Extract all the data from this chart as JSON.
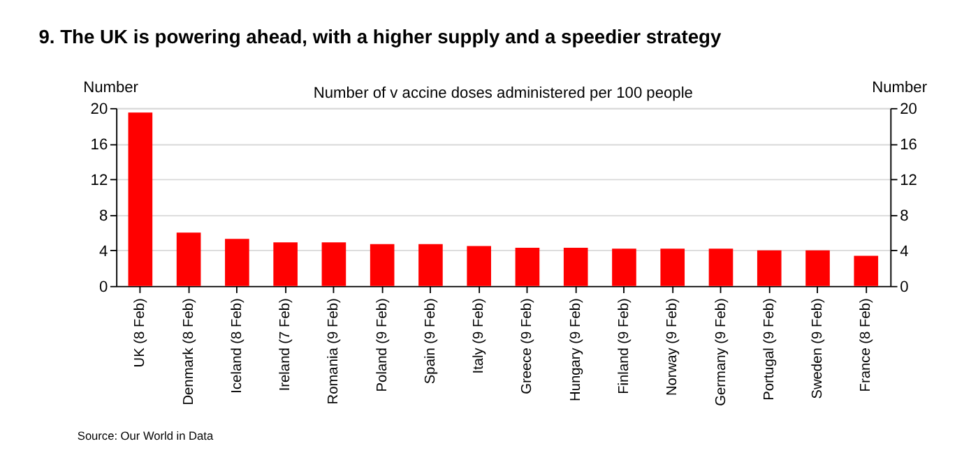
{
  "chart_data": {
    "type": "bar",
    "title": "9. The UK is powering ahead, with a higher supply and a speedier strategy",
    "subtitle": "Number of v accine doses administered per 100 people",
    "ylabel": "Number",
    "y2label": "Number",
    "categories": [
      "UK (8 Feb)",
      "Denmark (8 Feb)",
      "Iceland (8 Feb)",
      "Ireland (7 Feb)",
      "Romania (9 Feb)",
      "Poland (9 Feb)",
      "Spain (9 Feb)",
      "Italy (9 Feb)",
      "Greece (9 Feb)",
      "Hungary (9 Feb)",
      "Finland (9 Feb)",
      "Norway (9 Feb)",
      "Germany (9 Feb)",
      "Portugal (9 Feb)",
      "Sweden (9 Feb)",
      "France (8 Feb)"
    ],
    "values": [
      19.5,
      6.0,
      5.3,
      4.9,
      4.9,
      4.7,
      4.7,
      4.5,
      4.3,
      4.3,
      4.2,
      4.2,
      4.2,
      4.0,
      4.0,
      3.4
    ],
    "color": "#ff0000",
    "ylim": [
      0,
      20
    ],
    "yticks": [
      0,
      4,
      8,
      12,
      16,
      20
    ],
    "y2lim": [
      0,
      20
    ],
    "y2ticks": [
      0,
      4,
      8,
      12,
      16,
      20
    ],
    "grid": "y",
    "annotations": [
      "Source: Our World in Data"
    ]
  }
}
